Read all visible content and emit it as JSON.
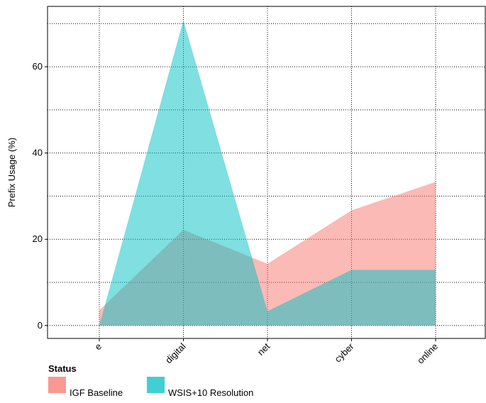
{
  "chart_data": {
    "type": "area",
    "title": "",
    "xlabel": "",
    "ylabel": "Prefix Usage (%)",
    "categories": [
      "e",
      "digital",
      "net",
      "cyber",
      "online"
    ],
    "ylim": [
      -3,
      74
    ],
    "yticks": [
      0,
      20,
      40,
      60
    ],
    "grid": true,
    "grid_style": "dotted",
    "series": [
      {
        "name": "IGF Baseline",
        "color": "#F8766D",
        "values": [
          3.5,
          22.2,
          14.3,
          26.7,
          33.3
        ]
      },
      {
        "name": "WSIS+10 Resolution",
        "color": "#00BFC4",
        "values": [
          0,
          70.8,
          3.3,
          12.9,
          12.9
        ]
      }
    ],
    "legend": {
      "title": "Status",
      "position": "bottom-left"
    }
  }
}
